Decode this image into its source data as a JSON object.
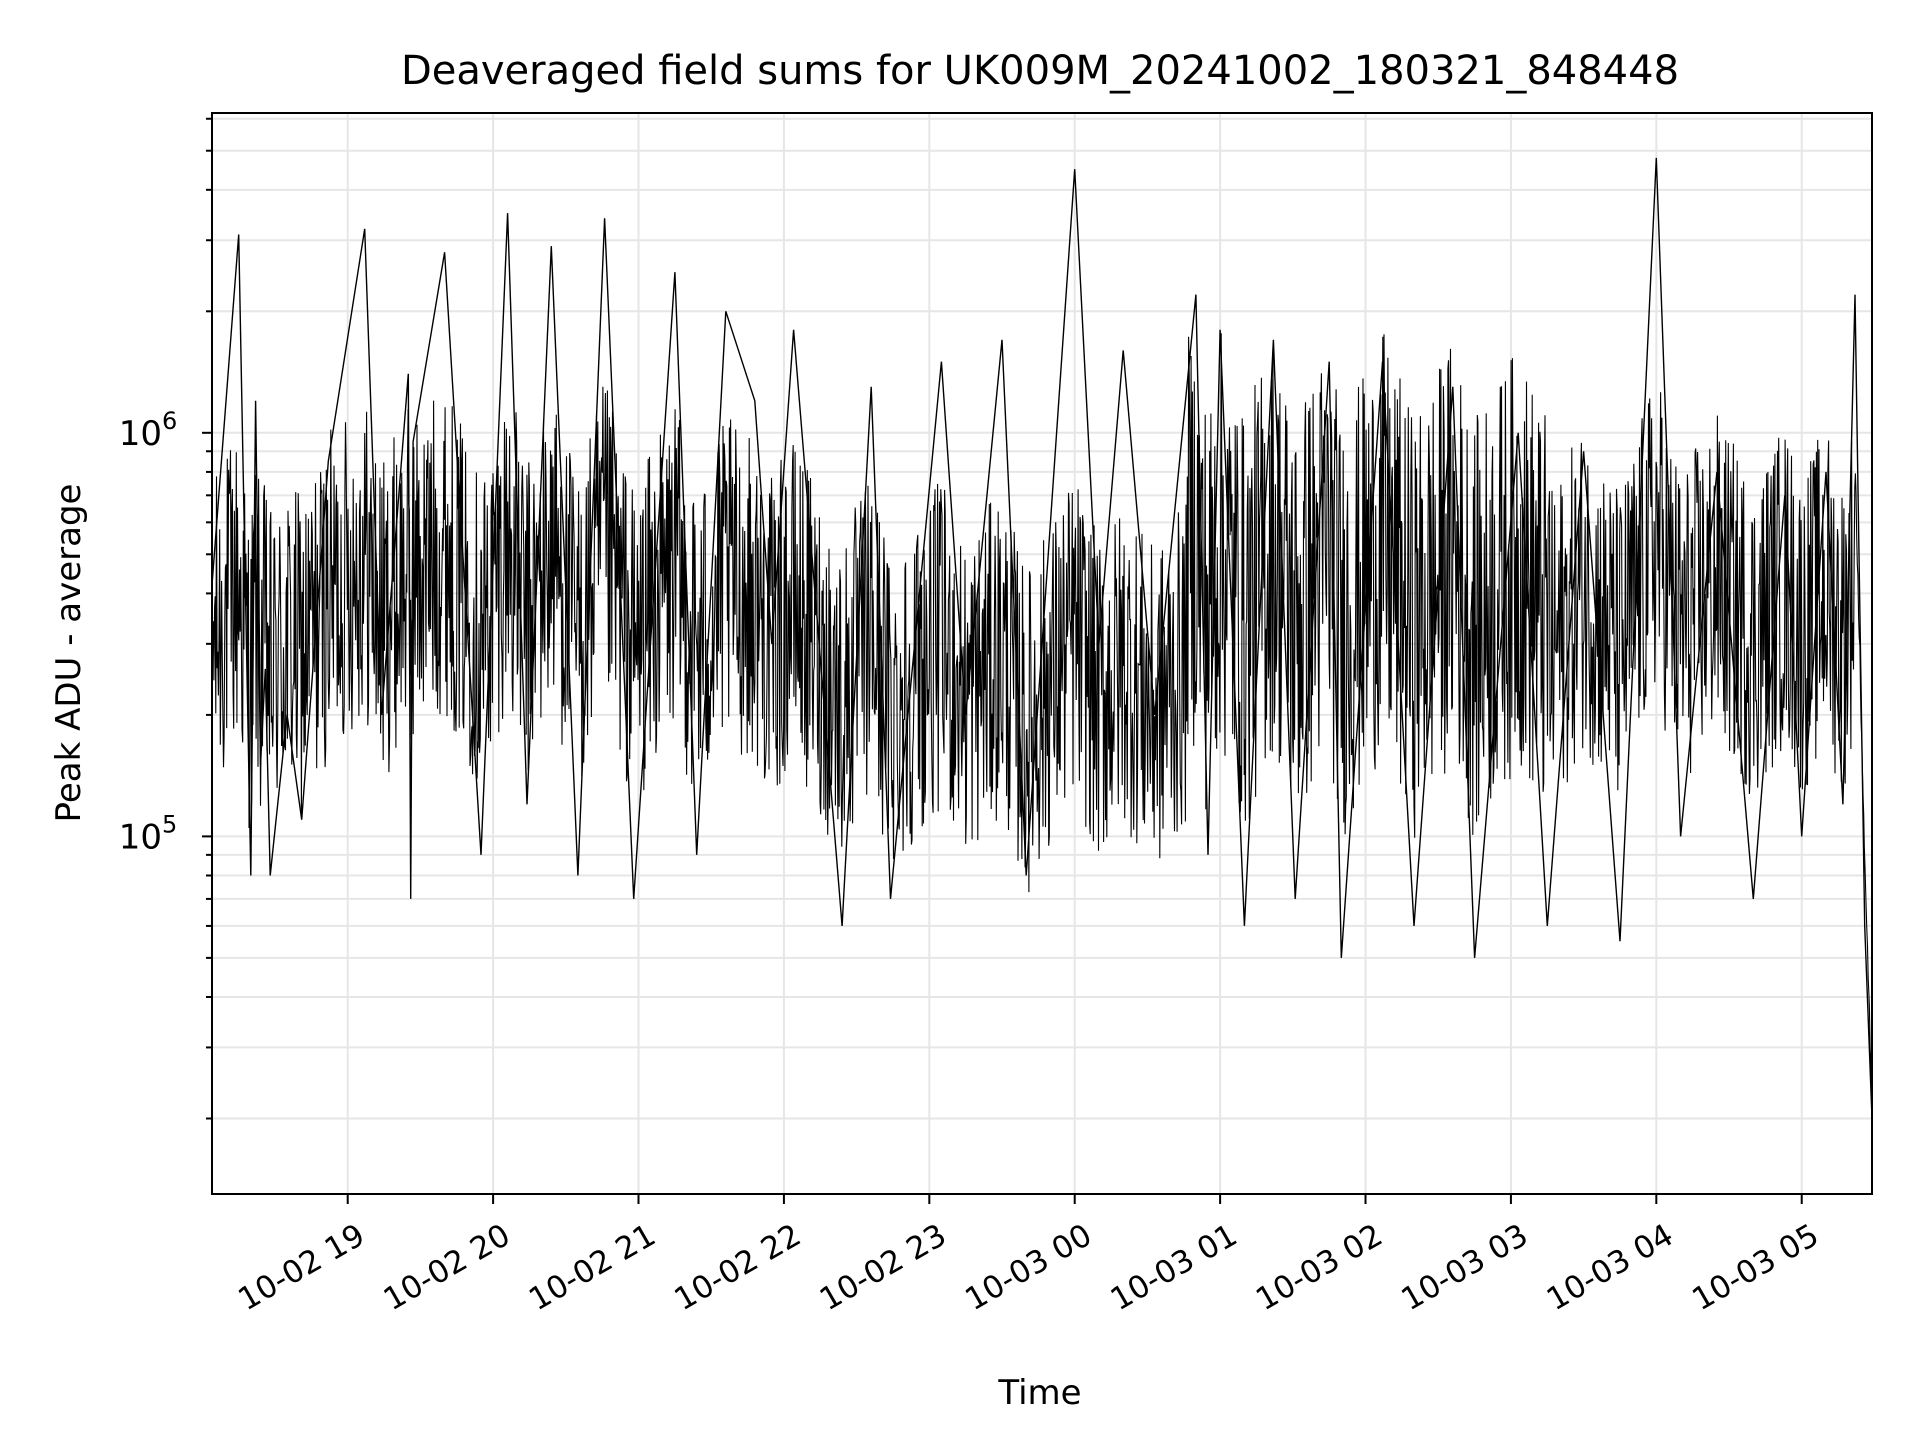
{
  "chart_data": {
    "type": "line",
    "title": "Deaveraged field sums for UK009M_20241002_180321_848448",
    "xlabel": "Time",
    "ylabel": "Peak ADU - average",
    "yscale": "log",
    "ylim": [
      13000,
      6200000
    ],
    "xlim": [
      "2024-10-02 18:04",
      "2024-10-03 05:29"
    ],
    "x_tick_labels": [
      "10-02 19",
      "10-02 20",
      "10-02 21",
      "10-02 22",
      "10-02 23",
      "10-03 00",
      "10-03 01",
      "10-03 02",
      "10-03 03",
      "10-03 04",
      "10-03 05"
    ],
    "x_ticks": [
      "2024-10-02 19:00",
      "2024-10-02 20:00",
      "2024-10-02 21:00",
      "2024-10-02 22:00",
      "2024-10-02 23:00",
      "2024-10-03 00:00",
      "2024-10-03 01:00",
      "2024-10-03 02:00",
      "2024-10-03 03:00",
      "2024-10-03 04:00",
      "2024-10-03 05:00"
    ],
    "y_tick_labels": [
      {
        "base": "10",
        "exp": "5",
        "value": 100000
      },
      {
        "base": "10",
        "exp": "6",
        "value": 1000000
      }
    ],
    "grid": true,
    "line_color": "#000000",
    "grid_color": "#e6e6e6",
    "series": [
      {
        "x": [
          "2024-10-02 18:04",
          "2024-10-02 18:15",
          "2024-10-02 18:20",
          "2024-10-02 18:22",
          "2024-10-02 18:24",
          "2024-10-02 18:26",
          "2024-10-02 18:28",
          "2024-10-02 18:35",
          "2024-10-02 18:41",
          "2024-10-02 18:52",
          "2024-10-02 19:07",
          "2024-10-02 19:14",
          "2024-10-02 19:25",
          "2024-10-02 19:26",
          "2024-10-02 19:27",
          "2024-10-02 19:40",
          "2024-10-02 19:55",
          "2024-10-02 20:06",
          "2024-10-02 20:14",
          "2024-10-02 20:24",
          "2024-10-02 20:35",
          "2024-10-02 20:46",
          "2024-10-02 20:58",
          "2024-10-02 21:15",
          "2024-10-02 21:24",
          "2024-10-02 21:36",
          "2024-10-02 21:48",
          "2024-10-02 21:55",
          "2024-10-02 22:04",
          "2024-10-02 22:24",
          "2024-10-02 22:36",
          "2024-10-02 22:44",
          "2024-10-02 23:05",
          "2024-10-02 23:15",
          "2024-10-02 23:30",
          "2024-10-02 23:40",
          "2024-10-03 00:00",
          "2024-10-03 00:10",
          "2024-10-03 00:20",
          "2024-10-03 00:33",
          "2024-10-03 00:50",
          "2024-10-03 00:55",
          "2024-10-03 01:00",
          "2024-10-03 01:10",
          "2024-10-03 01:22",
          "2024-10-03 01:31",
          "2024-10-03 01:45",
          "2024-10-03 01:50",
          "2024-10-03 02:07",
          "2024-10-03 02:20",
          "2024-10-03 02:36",
          "2024-10-03 02:45",
          "2024-10-03 03:03",
          "2024-10-03 03:15",
          "2024-10-03 03:30",
          "2024-10-03 03:45",
          "2024-10-03 04:00",
          "2024-10-03 04:10",
          "2024-10-03 04:25",
          "2024-10-03 04:40",
          "2024-10-03 04:53",
          "2024-10-03 05:00",
          "2024-10-03 05:10",
          "2024-10-03 05:17",
          "2024-10-03 05:22",
          "2024-10-03 05:26",
          "2024-10-03 05:29"
        ],
        "y": [
          420000,
          3100000,
          80000,
          1200000,
          150000,
          260000,
          80000,
          200000,
          110000,
          850000,
          3200000,
          200000,
          1400000,
          70000,
          950000,
          2800000,
          90000,
          3500000,
          120000,
          2900000,
          80000,
          3400000,
          70000,
          2500000,
          90000,
          2000000,
          1200000,
          300000,
          1800000,
          60000,
          1300000,
          70000,
          1500000,
          200000,
          1700000,
          80000,
          4500000,
          300000,
          1600000,
          200000,
          2200000,
          90000,
          1800000,
          60000,
          1700000,
          70000,
          1500000,
          50000,
          1500000,
          60000,
          1300000,
          50000,
          1000000,
          60000,
          900000,
          55000,
          4800000,
          100000,
          800000,
          70000,
          700000,
          100000,
          800000,
          120000,
          2200000,
          60000,
          20000
        ]
      }
    ]
  }
}
